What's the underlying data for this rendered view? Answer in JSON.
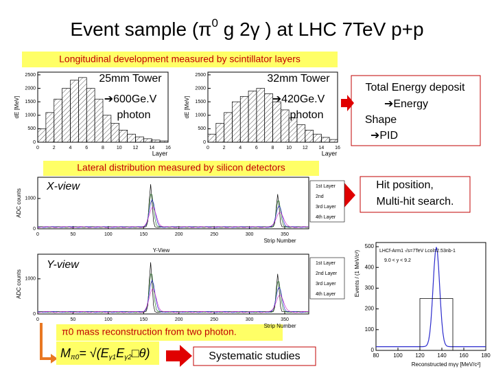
{
  "title": {
    "start": "Event sample (π",
    "sup": "0",
    "end": " g 2γ ) at LHC 7TeV p+p"
  },
  "longitudinal": {
    "label": "Longitudinal development measured by scintillator layers",
    "plots": [
      {
        "tower": "25mm Tower",
        "energy": "➔600Ge.V",
        "particle": "photon",
        "y_label": "dE [MeV]",
        "x_label": "Layer",
        "xlim": [
          0,
          16
        ],
        "ylim": [
          0,
          2600
        ],
        "xticks": [
          0,
          2,
          4,
          6,
          8,
          10,
          12,
          14,
          16
        ],
        "yticks": [
          0,
          500,
          1000,
          1500,
          2000,
          2500
        ],
        "values": [
          500,
          1100,
          1600,
          2000,
          2300,
          2400,
          2000,
          1600,
          1000,
          700,
          450,
          300,
          200,
          130,
          80,
          50
        ]
      },
      {
        "tower": "32mm Tower",
        "energy": "➔420Ge.V",
        "particle": "photon",
        "y_label": "dE [MeV]",
        "x_label": "Layer",
        "xlim": [
          0,
          16
        ],
        "ylim": [
          0,
          2600
        ],
        "xticks": [
          0,
          2,
          4,
          6,
          8,
          10,
          12,
          14,
          16
        ],
        "yticks": [
          0,
          500,
          1000,
          1500,
          2000,
          2500
        ],
        "values": [
          300,
          700,
          1100,
          1500,
          1700,
          1900,
          2000,
          1800,
          1500,
          1200,
          900,
          650,
          450,
          300,
          180,
          100
        ]
      }
    ]
  },
  "notes": {
    "energy": [
      "Total Energy deposit",
      "➔Energy",
      "Shape",
      "➔PID"
    ],
    "hit": [
      "Hit position,",
      "Multi-hit search."
    ]
  },
  "lateral": {
    "label": "Lateral distribution measured by silicon detectors",
    "plots": [
      {
        "view": "X-view",
        "y_label": "ADC counts",
        "x_label": "Strip Number",
        "xlim": [
          0,
          384
        ],
        "ylim": [
          0,
          1700
        ],
        "xticks": [
          0,
          50,
          100,
          150,
          200,
          250,
          300,
          350
        ],
        "yticks": [
          0,
          1000
        ],
        "legend": [
          "1st Layer",
          "2nd",
          "3rd Layer",
          "4th Layer"
        ]
      },
      {
        "view": "Y-view",
        "panel_title": "Y-View",
        "y_label": "ADC counts",
        "x_label": "Strip Number",
        "xlim": [
          0,
          384
        ],
        "ylim": [
          0,
          1700
        ],
        "xticks": [
          0,
          50,
          100,
          150,
          200,
          250,
          300,
          350
        ],
        "yticks": [
          0,
          1000
        ],
        "legend": [
          "1st Layer",
          "2nd Layer",
          "3rd Layer",
          "4th Layer"
        ]
      }
    ]
  },
  "mass": {
    "label": "π0 mass reconstruction from two photon.",
    "formula": {
      "m": "M",
      "m_sub": "π0",
      "eq": "= √(E",
      "e1_sub": "γ1",
      "e2": "E",
      "e2_sub": "γ2",
      "tail": "□θ)"
    },
    "systematic": "Systematic studies",
    "plot": {
      "info": "LHCf-Arm1 √s=7TeV  Lcol=2.53nb-1",
      "range": "9.0 < y < 9.2",
      "y_label": "Events / (1 MeV/c²)",
      "x_label": "Reconstructed mγγ [MeV/c²]",
      "xlim": [
        80,
        180
      ],
      "ylim": [
        0,
        520
      ],
      "xticks": [
        80,
        100,
        120,
        140,
        160,
        180
      ],
      "yticks": [
        0,
        100,
        200,
        300,
        400,
        500
      ]
    }
  }
}
